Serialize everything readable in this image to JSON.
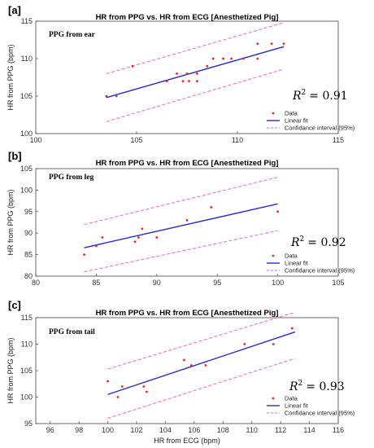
{
  "chart_data": [
    {
      "type": "scatter",
      "panel_label": "[a]",
      "title": "HR from PPG vs. HR from ECG [Anesthetized Pig]",
      "annotation": "PPG from ear",
      "xlabel": "",
      "ylabel": "HR from PPG (bpm)",
      "xlim": [
        100,
        115
      ],
      "ylim": [
        100,
        115
      ],
      "xticks": [
        "100",
        "105",
        "110",
        "115"
      ],
      "yticks": [
        "100",
        "105",
        "110",
        "115"
      ],
      "points": [
        [
          103.5,
          105
        ],
        [
          104.0,
          105
        ],
        [
          104.8,
          109
        ],
        [
          106.5,
          107
        ],
        [
          107.0,
          108
        ],
        [
          107.3,
          107
        ],
        [
          107.5,
          108
        ],
        [
          107.6,
          107
        ],
        [
          108.0,
          107
        ],
        [
          108.0,
          108
        ],
        [
          108.5,
          109
        ],
        [
          108.8,
          110
        ],
        [
          109.3,
          110
        ],
        [
          109.7,
          110
        ],
        [
          110.3,
          110
        ],
        [
          111.0,
          110
        ],
        [
          111.0,
          112
        ],
        [
          111.7,
          112
        ],
        [
          112.3,
          112
        ]
      ],
      "fit_line": {
        "x": [
          103.5,
          112.3
        ],
        "y": [
          104.8,
          111.6
        ]
      },
      "ci_upper": {
        "x": [
          103.5,
          112.3
        ],
        "y": [
          108.0,
          114.8
        ]
      },
      "ci_lower": {
        "x": [
          103.5,
          112.3
        ],
        "y": [
          101.6,
          108.6
        ]
      },
      "r2_symbol": "R",
      "r2_sup": "2",
      "r2_value": "= 0.91",
      "legend": [
        "Data",
        "Linear fit",
        "Confidance interval (95%)"
      ],
      "legend_position": "bottom-right",
      "grid": false
    },
    {
      "type": "scatter",
      "panel_label": "[b]",
      "title": "HR from PPG vs. HR from ECG [Anesthetized Pig]",
      "annotation": "PPG from leg",
      "xlabel": "",
      "ylabel": "HR from PPG (bpm)",
      "xlim": [
        80,
        105
      ],
      "ylim": [
        80,
        105
      ],
      "xticks": [
        "80",
        "85",
        "90",
        "95",
        "100",
        "105"
      ],
      "yticks": [
        "80",
        "85",
        "90",
        "95",
        "100",
        "105"
      ],
      "points": [
        [
          84.0,
          85
        ],
        [
          85.0,
          87
        ],
        [
          85.5,
          89
        ],
        [
          88.2,
          88
        ],
        [
          88.5,
          89
        ],
        [
          88.8,
          91
        ],
        [
          90.0,
          89
        ],
        [
          92.5,
          93
        ],
        [
          94.5,
          96
        ],
        [
          100.0,
          95
        ]
      ],
      "fit_line": {
        "x": [
          84.0,
          100.0
        ],
        "y": [
          86.6,
          96.8
        ]
      },
      "ci_upper": {
        "x": [
          84.0,
          100.0
        ],
        "y": [
          92.0,
          103.0
        ]
      },
      "ci_lower": {
        "x": [
          84.0,
          100.0
        ],
        "y": [
          81.0,
          90.6
        ]
      },
      "r2_symbol": "R",
      "r2_sup": "2",
      "r2_value": "= 0.92",
      "legend": [
        "Data",
        "Linear fit",
        "Confidance interval (95%)"
      ],
      "legend_position": "bottom-right",
      "grid": false
    },
    {
      "type": "scatter",
      "panel_label": "[c]",
      "title": "HR from PPG vs. HR from ECG [Anesthetized Pig]",
      "annotation": "PPG from tail",
      "xlabel": "HR from ECG (bpm)",
      "ylabel": "HR from PPG (bpm)",
      "xlim": [
        95,
        116
      ],
      "ylim": [
        95,
        115
      ],
      "xticks": [
        "96",
        "98",
        "100",
        "102",
        "104",
        "106",
        "108",
        "110",
        "112",
        "114",
        "116"
      ],
      "yticks": [
        "95",
        "100",
        "105",
        "110",
        "115"
      ],
      "points": [
        [
          100.0,
          103
        ],
        [
          100.7,
          100
        ],
        [
          101.0,
          102
        ],
        [
          102.5,
          102
        ],
        [
          102.7,
          101
        ],
        [
          105.3,
          107
        ],
        [
          105.8,
          106
        ],
        [
          106.8,
          106
        ],
        [
          109.5,
          110
        ],
        [
          111.5,
          110
        ],
        [
          112.8,
          113
        ]
      ],
      "fit_line": {
        "x": [
          100.0,
          113.0
        ],
        "y": [
          100.5,
          112.3
        ]
      },
      "ci_upper": {
        "x": [
          100.0,
          113.0
        ],
        "y": [
          105.3,
          116.0
        ]
      },
      "ci_lower": {
        "x": [
          100.0,
          113.0
        ],
        "y": [
          96.0,
          107.3
        ]
      },
      "r2_symbol": "R",
      "r2_sup": "2",
      "r2_value": "= 0.93",
      "legend": [
        "Data",
        "Linear fit",
        "Confidance interval (95%)"
      ],
      "legend_position": "bottom-right",
      "grid": false
    }
  ],
  "colors": {
    "data": "#e8262a",
    "fit": "#2a2ac8",
    "ci": "#ee5fd2",
    "axis": "#444444"
  }
}
